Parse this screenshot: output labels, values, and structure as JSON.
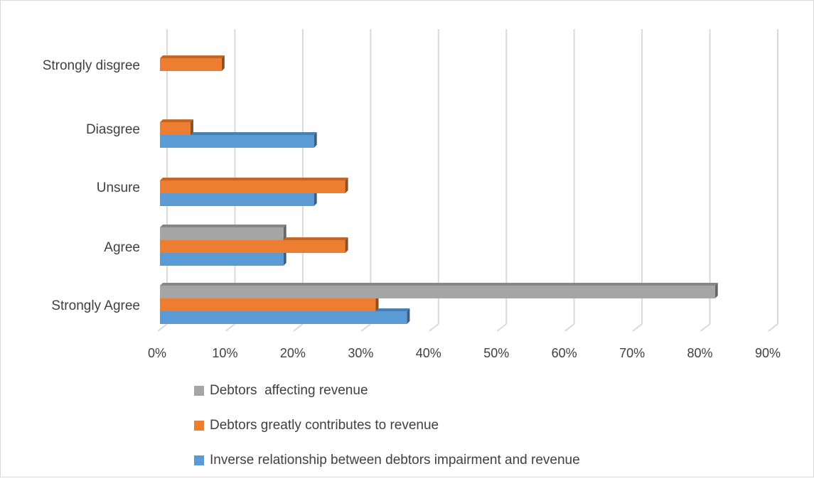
{
  "chart_data": {
    "type": "bar",
    "orientation": "horizontal",
    "style": "3d-clustered",
    "categories": [
      "Strongly Agree",
      "Agree",
      "Unsure",
      "Diasgree",
      "Strongly disgree"
    ],
    "series": [
      {
        "name": "Inverse relationship between debtors impairment and revenue",
        "color": "#5b9bd5",
        "values": [
          36.4,
          18.2,
          22.7,
          22.7,
          0
        ]
      },
      {
        "name": "Debtors greatly contributes to revenue",
        "color": "#ed7d31",
        "values": [
          31.8,
          27.3,
          27.3,
          4.5,
          9.1
        ]
      },
      {
        "name": "Debtors  affecting revenue",
        "color": "#a5a5a5",
        "values": [
          81.8,
          18.2,
          0,
          0,
          0
        ]
      }
    ],
    "x_ticks": [
      "0%",
      "10%",
      "20%",
      "30%",
      "40%",
      "50%",
      "60%",
      "70%",
      "80%",
      "90%"
    ],
    "xlim": [
      0,
      90
    ],
    "grid": "vertical",
    "legend_position": "bottom",
    "title": "",
    "xlabel": "",
    "ylabel": ""
  }
}
